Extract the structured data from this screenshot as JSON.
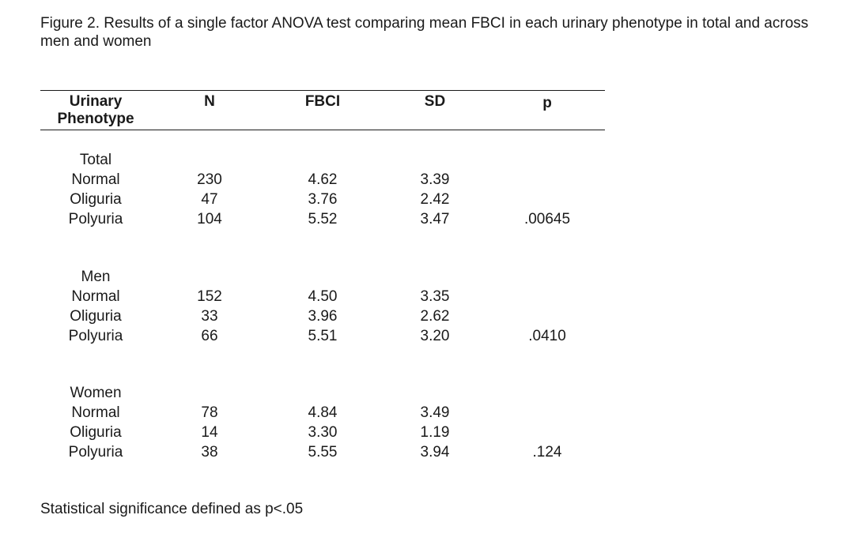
{
  "caption": "Figure 2. Results of a single factor ANOVA test comparing mean FBCI in each urinary phenotype in total and across men and women",
  "headers": {
    "phenotype": "Urinary Phenotype",
    "n": "N",
    "fbci": "FBCI",
    "sd": "SD",
    "p": "p"
  },
  "groups": [
    {
      "label": "Total",
      "p": ".00645",
      "rows": [
        {
          "name": "Normal",
          "n": "230",
          "fbci": "4.62",
          "sd": "3.39"
        },
        {
          "name": "Oliguria",
          "n": "47",
          "fbci": "3.76",
          "sd": "2.42"
        },
        {
          "name": "Polyuria",
          "n": "104",
          "fbci": "5.52",
          "sd": "3.47"
        }
      ]
    },
    {
      "label": "Men",
      "p": ".0410",
      "rows": [
        {
          "name": "Normal",
          "n": "152",
          "fbci": "4.50",
          "sd": "3.35"
        },
        {
          "name": "Oliguria",
          "n": "33",
          "fbci": "3.96",
          "sd": "2.62"
        },
        {
          "name": "Polyuria",
          "n": "66",
          "fbci": "5.51",
          "sd": "3.20"
        }
      ]
    },
    {
      "label": "Women",
      "p": ".124",
      "rows": [
        {
          "name": "Normal",
          "n": "78",
          "fbci": "4.84",
          "sd": "3.49"
        },
        {
          "name": "Oliguria",
          "n": "14",
          "fbci": "3.30",
          "sd": "1.19"
        },
        {
          "name": "Polyuria",
          "n": "38",
          "fbci": "5.55",
          "sd": "3.94"
        }
      ]
    }
  ],
  "footnote": "Statistical significance defined as p<.05"
}
